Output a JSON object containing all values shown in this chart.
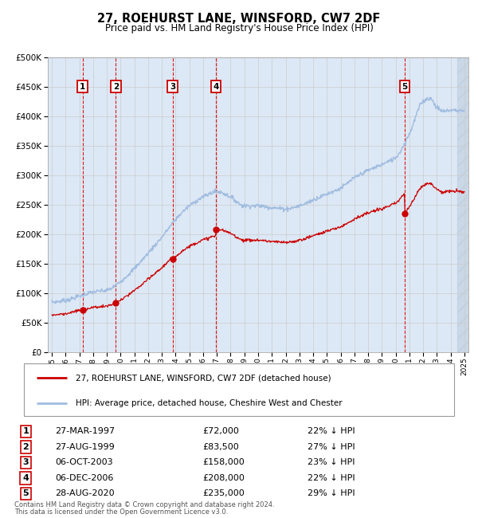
{
  "title": "27, ROEHURST LANE, WINSFORD, CW7 2DF",
  "subtitle": "Price paid vs. HM Land Registry's House Price Index (HPI)",
  "legend_line1": "27, ROEHURST LANE, WINSFORD, CW7 2DF (detached house)",
  "legend_line2": "HPI: Average price, detached house, Cheshire West and Chester",
  "footer1": "Contains HM Land Registry data © Crown copyright and database right 2024.",
  "footer2": "This data is licensed under the Open Government Licence v3.0.",
  "sales": [
    {
      "label": "1",
      "date_str": "27-MAR-1997",
      "date_x": 1997.23,
      "price": 72000,
      "pct": "22% ↓ HPI"
    },
    {
      "label": "2",
      "date_str": "27-AUG-1999",
      "date_x": 1999.65,
      "price": 83500,
      "pct": "27% ↓ HPI"
    },
    {
      "label": "3",
      "date_str": "06-OCT-2003",
      "date_x": 2003.77,
      "price": 158000,
      "pct": "23% ↓ HPI"
    },
    {
      "label": "4",
      "date_str": "06-DEC-2006",
      "date_x": 2006.93,
      "price": 208000,
      "pct": "22% ↓ HPI"
    },
    {
      "label": "5",
      "date_str": "28-AUG-2020",
      "date_x": 2020.65,
      "price": 235000,
      "pct": "29% ↓ HPI"
    }
  ],
  "ylim": [
    0,
    500000
  ],
  "xlim": [
    1994.7,
    2025.3
  ],
  "yticks": [
    0,
    50000,
    100000,
    150000,
    200000,
    250000,
    300000,
    350000,
    400000,
    450000,
    500000
  ],
  "xticks": [
    1995,
    1996,
    1997,
    1998,
    1999,
    2000,
    2001,
    2002,
    2003,
    2004,
    2005,
    2006,
    2007,
    2008,
    2009,
    2010,
    2011,
    2012,
    2013,
    2014,
    2015,
    2016,
    2017,
    2018,
    2019,
    2020,
    2021,
    2022,
    2023,
    2024,
    2025
  ],
  "hpi_color": "#a0bce0",
  "price_color": "#cc0000",
  "sale_dot_color": "#cc0000",
  "grid_color": "#cccccc",
  "vline_color": "#dd0000",
  "bg_color": "#dce8f5",
  "label_box_color": "#cc0000",
  "label_box_fill": "#ffffff",
  "hpi_knots_x": [
    1995,
    1996,
    1997,
    1998,
    1999,
    2000,
    2001,
    2002,
    2003,
    2004,
    2005,
    2006,
    2007,
    2008,
    2009,
    2010,
    2011,
    2012,
    2013,
    2014,
    2015,
    2016,
    2017,
    2018,
    2019,
    2020,
    2021,
    2022,
    2022.5,
    2023,
    2023.5,
    2024,
    2025
  ],
  "hpi_knots_y": [
    85000,
    88000,
    95000,
    102000,
    105000,
    120000,
    142000,
    168000,
    195000,
    225000,
    248000,
    263000,
    272000,
    263000,
    248000,
    248000,
    245000,
    243000,
    248000,
    258000,
    268000,
    278000,
    295000,
    308000,
    318000,
    330000,
    370000,
    425000,
    430000,
    415000,
    408000,
    410000,
    408000
  ]
}
